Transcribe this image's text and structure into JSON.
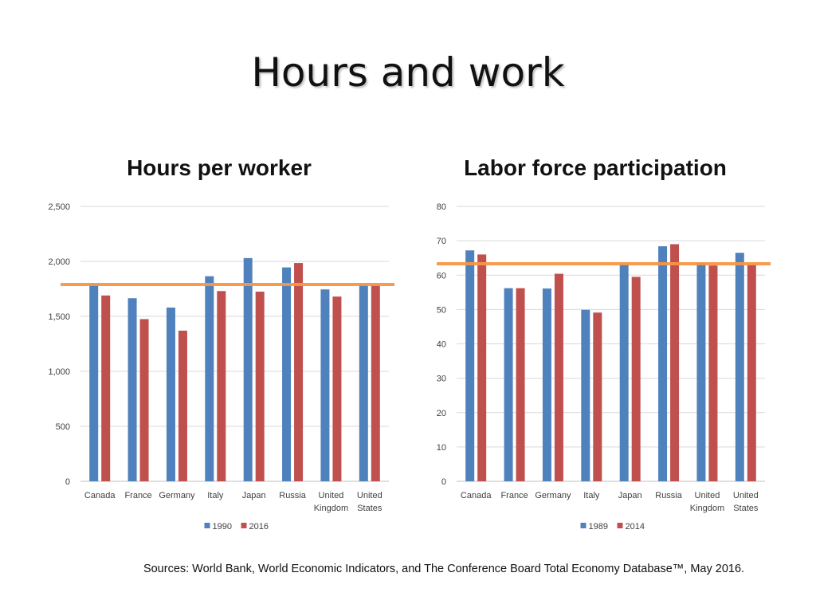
{
  "title": "Hours and work",
  "sources": "Sources: World Bank, World Economic Indicators, and The Conference Board Total Economy Database™, May 2016.",
  "colors": {
    "series1": "#4F81BD",
    "series2": "#C0504D",
    "reference": "#F79646",
    "grid": "#D9D9D9",
    "axis": "#BFBFBF"
  },
  "chart_data": [
    {
      "type": "bar",
      "title": "Hours per worker",
      "categories": [
        [
          "Canada"
        ],
        [
          "France"
        ],
        [
          "Germany"
        ],
        [
          "Italy"
        ],
        [
          "Japan"
        ],
        [
          "Russia"
        ],
        [
          "United",
          "Kingdom"
        ],
        [
          "United",
          "States"
        ]
      ],
      "series": [
        {
          "name": "1990",
          "values": [
            1790,
            1665,
            1580,
            1865,
            2030,
            1945,
            1745,
            1790
          ]
        },
        {
          "name": "2016",
          "values": [
            1690,
            1475,
            1370,
            1730,
            1725,
            1985,
            1680,
            1785
          ]
        }
      ],
      "ylim": [
        0,
        2500
      ],
      "yticks": [
        0,
        500,
        1000,
        1500,
        2000,
        2500
      ],
      "ytick_labels": [
        "0",
        "500",
        "1,000",
        "1,500",
        "2,000",
        "2,500"
      ],
      "reference_line": 1790,
      "legend": "bottom",
      "grid": true
    },
    {
      "type": "bar",
      "title": "Labor force participation",
      "categories": [
        [
          "Canada"
        ],
        [
          "France"
        ],
        [
          "Germany"
        ],
        [
          "Italy"
        ],
        [
          "Japan"
        ],
        [
          "Russia"
        ],
        [
          "United",
          "Kingdom"
        ],
        [
          "United",
          "States"
        ]
      ],
      "series": [
        {
          "name": "1989",
          "values": [
            67.2,
            56.2,
            56.1,
            49.9,
            63.1,
            68.4,
            63.6,
            66.5
          ]
        },
        {
          "name": "2014",
          "values": [
            66.0,
            56.2,
            60.4,
            49.1,
            59.5,
            69.0,
            62.8,
            63.0
          ]
        }
      ],
      "ylim": [
        0,
        80
      ],
      "yticks": [
        0,
        10,
        20,
        30,
        40,
        50,
        60,
        70,
        80
      ],
      "ytick_labels": [
        "0",
        "10",
        "20",
        "30",
        "40",
        "50",
        "60",
        "70",
        "80"
      ],
      "reference_line": 63.3,
      "legend": "bottom",
      "grid": true
    }
  ]
}
